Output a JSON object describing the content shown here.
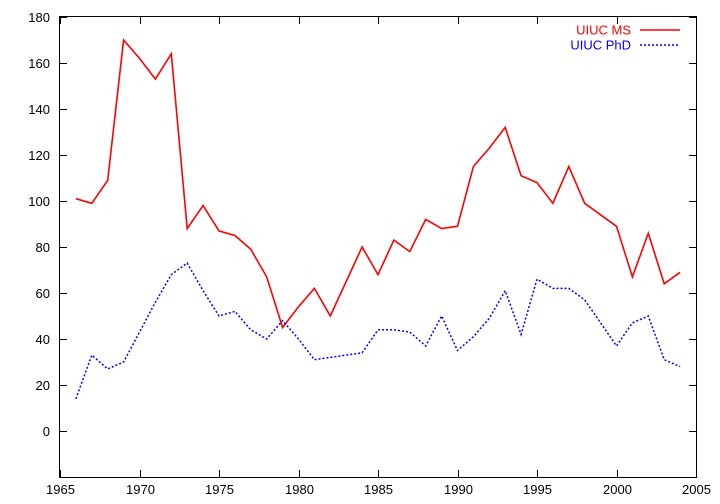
{
  "chart_data": {
    "type": "line",
    "title": "",
    "xlabel": "",
    "ylabel": "",
    "xlim": [
      1965,
      2005
    ],
    "ylim": [
      -20,
      180
    ],
    "x_ticks": [
      1965,
      1970,
      1975,
      1980,
      1985,
      1990,
      1995,
      2000,
      2005
    ],
    "y_ticks": [
      0,
      20,
      40,
      60,
      80,
      100,
      120,
      140,
      160,
      180
    ],
    "grid": false,
    "legend": "top-right",
    "series": [
      {
        "name": "UIUC MS",
        "color": "#ff0000",
        "style": "solid",
        "x": [
          1966,
          1967,
          1968,
          1969,
          1970,
          1971,
          1972,
          1973,
          1974,
          1975,
          1976,
          1977,
          1978,
          1979,
          1980,
          1981,
          1982,
          1983,
          1984,
          1985,
          1986,
          1987,
          1988,
          1989,
          1990,
          1991,
          1992,
          1993,
          1994,
          1995,
          1996,
          1997,
          1998,
          1999,
          2000,
          2001,
          2002,
          2003,
          2004
        ],
        "values": [
          101,
          99,
          109,
          170,
          162,
          153,
          164,
          88,
          98,
          87,
          85,
          79,
          67,
          45,
          54,
          62,
          50,
          65,
          80,
          68,
          83,
          78,
          92,
          88,
          89,
          115,
          123,
          132,
          111,
          108,
          99,
          115,
          99,
          94,
          89,
          67,
          86,
          64,
          69
        ]
      },
      {
        "name": "UIUC PhD",
        "color": "#0000ff",
        "style": "dotted",
        "x": [
          1966,
          1967,
          1968,
          1969,
          1970,
          1971,
          1972,
          1973,
          1974,
          1975,
          1976,
          1977,
          1978,
          1979,
          1980,
          1981,
          1982,
          1983,
          1984,
          1985,
          1986,
          1987,
          1988,
          1989,
          1990,
          1991,
          1992,
          1993,
          1994,
          1995,
          1996,
          1997,
          1998,
          1999,
          2000,
          2001,
          2002,
          2003,
          2004
        ],
        "values": [
          14,
          33,
          27,
          30,
          43,
          56,
          68,
          73,
          61,
          50,
          52,
          44,
          40,
          48,
          40,
          31,
          32,
          33,
          34,
          44,
          44,
          43,
          37,
          50,
          35,
          41,
          49,
          61,
          42,
          66,
          62,
          62,
          57,
          47,
          37,
          47,
          50,
          31,
          28
        ]
      }
    ]
  }
}
